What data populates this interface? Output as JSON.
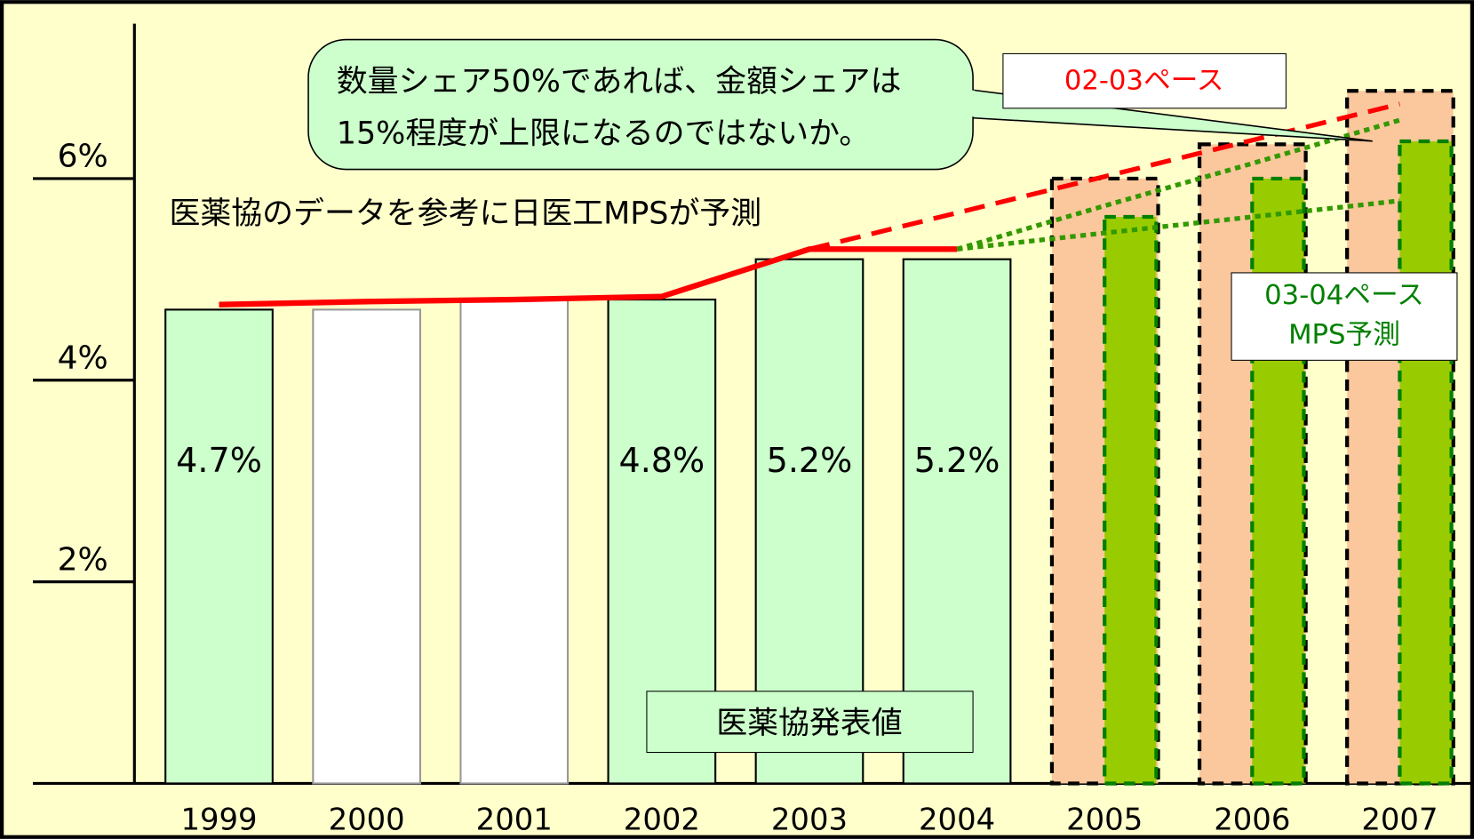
{
  "chart_data": {
    "type": "bar",
    "categories": [
      "1999",
      "2000",
      "2001",
      "2002",
      "2003",
      "2004",
      "2005",
      "2006",
      "2007"
    ],
    "series": [
      {
        "name": "医薬協発表値",
        "colors": [
          "#ccffcc",
          "#ffffff",
          "#ffffff",
          "#ccffcc",
          "#ccffcc",
          "#ccffcc",
          null,
          null,
          null
        ],
        "values": [
          4.7,
          4.7,
          4.8,
          4.8,
          5.2,
          5.2,
          null,
          null,
          null
        ],
        "value_labels": [
          "4.7%",
          null,
          null,
          "4.8%",
          "5.2%",
          "5.2%",
          null,
          null,
          null
        ]
      },
      {
        "name": "02-03ペース",
        "color": "#fbc89e",
        "text_color": "#ff0000",
        "values": [
          null,
          null,
          null,
          null,
          null,
          null,
          6.0,
          6.34,
          6.87
        ]
      },
      {
        "name": [
          "03-04ペース",
          "MPS予測"
        ],
        "color": "#99cc00",
        "text_color": "#008000",
        "values": [
          null,
          null,
          null,
          null,
          null,
          null,
          5.62,
          6.0,
          6.37
        ]
      }
    ],
    "lines": [
      {
        "color": "#ff0000",
        "style": "solid",
        "values": [
          4.75,
          4.78,
          4.8,
          4.83,
          5.3,
          5.3,
          null,
          null,
          null
        ]
      },
      {
        "color": "#ff0000",
        "style": "dashed",
        "values": [
          null,
          null,
          null,
          null,
          5.3,
          5.66,
          6.02,
          6.38,
          6.74
        ]
      },
      {
        "color": "#339900",
        "style": "dotted",
        "values": [
          null,
          null,
          null,
          null,
          null,
          5.3,
          5.73,
          6.15,
          6.58
        ]
      },
      {
        "color": "#339900",
        "style": "dotted",
        "values": [
          null,
          null,
          null,
          null,
          null,
          5.3,
          5.46,
          5.62,
          5.78
        ]
      }
    ],
    "annotations": {
      "callout": [
        "数量シェア50%であれば、金額シェアは",
        "15%程度が上限になるのではないか。"
      ],
      "note": "医薬協のデータを参考に日医工MPSが予測"
    },
    "ylim": [
      0,
      7.5
    ],
    "yticks": [
      {
        "value": 2,
        "label": "2%"
      },
      {
        "value": 4,
        "label": "4%"
      },
      {
        "value": 6,
        "label": "6%"
      }
    ]
  }
}
